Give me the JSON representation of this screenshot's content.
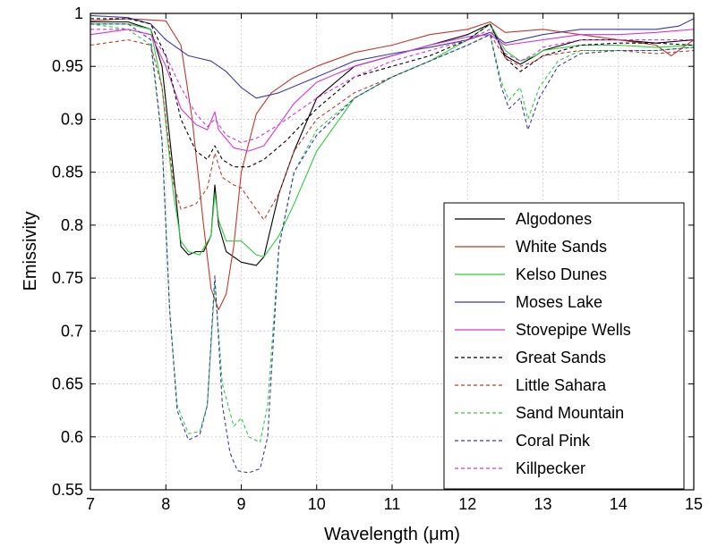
{
  "chart_data": {
    "type": "line",
    "xlabel": "Wavelength (μm)",
    "ylabel": "Emissivity",
    "xlim": [
      7,
      15
    ],
    "ylim": [
      0.55,
      1
    ],
    "grid": true,
    "legend_position": "bottom-right",
    "x_ticks": [
      "7",
      "8",
      "9",
      "10",
      "11",
      "12",
      "13",
      "14",
      "15"
    ],
    "y_ticks": [
      "0.55",
      "0.6",
      "0.65",
      "0.7",
      "0.75",
      "0.8",
      "0.85",
      "0.9",
      "0.95",
      "1"
    ],
    "series": [
      {
        "name": "Algodones",
        "color": "#000000",
        "style": "solid",
        "points": [
          [
            7,
            0.992
          ],
          [
            7.5,
            0.992
          ],
          [
            7.8,
            0.985
          ],
          [
            7.95,
            0.95
          ],
          [
            8.1,
            0.85
          ],
          [
            8.2,
            0.78
          ],
          [
            8.3,
            0.772
          ],
          [
            8.4,
            0.775
          ],
          [
            8.5,
            0.775
          ],
          [
            8.6,
            0.79
          ],
          [
            8.65,
            0.838
          ],
          [
            8.7,
            0.8
          ],
          [
            8.8,
            0.775
          ],
          [
            9,
            0.765
          ],
          [
            9.2,
            0.762
          ],
          [
            9.3,
            0.77
          ],
          [
            9.4,
            0.8
          ],
          [
            9.5,
            0.83
          ],
          [
            9.7,
            0.87
          ],
          [
            10,
            0.92
          ],
          [
            10.5,
            0.95
          ],
          [
            11,
            0.96
          ],
          [
            11.5,
            0.97
          ],
          [
            12,
            0.98
          ],
          [
            12.3,
            0.99
          ],
          [
            12.5,
            0.96
          ],
          [
            12.7,
            0.952
          ],
          [
            12.9,
            0.96
          ],
          [
            13,
            0.965
          ],
          [
            13.5,
            0.975
          ],
          [
            14,
            0.975
          ],
          [
            14.5,
            0.972
          ],
          [
            15,
            0.975
          ]
        ]
      },
      {
        "name": "White Sands",
        "color": "#c0392b",
        "style": "solid",
        "points": [
          [
            7,
            0.993
          ],
          [
            7.5,
            0.995
          ],
          [
            8,
            0.993
          ],
          [
            8.2,
            0.97
          ],
          [
            8.35,
            0.9
          ],
          [
            8.5,
            0.8
          ],
          [
            8.6,
            0.74
          ],
          [
            8.7,
            0.72
          ],
          [
            8.8,
            0.735
          ],
          [
            8.9,
            0.78
          ],
          [
            9,
            0.85
          ],
          [
            9.2,
            0.905
          ],
          [
            9.4,
            0.925
          ],
          [
            9.7,
            0.94
          ],
          [
            10,
            0.95
          ],
          [
            10.5,
            0.963
          ],
          [
            11,
            0.97
          ],
          [
            11.5,
            0.98
          ],
          [
            12,
            0.985
          ],
          [
            12.3,
            0.992
          ],
          [
            12.5,
            0.982
          ],
          [
            13,
            0.985
          ],
          [
            13.5,
            0.98
          ],
          [
            14,
            0.975
          ],
          [
            14.5,
            0.97
          ],
          [
            14.7,
            0.96
          ],
          [
            15,
            0.975
          ]
        ]
      },
      {
        "name": "Kelso Dunes",
        "color": "#2ecc40",
        "style": "solid",
        "points": [
          [
            7,
            0.99
          ],
          [
            7.5,
            0.99
          ],
          [
            7.8,
            0.985
          ],
          [
            7.95,
            0.93
          ],
          [
            8.1,
            0.83
          ],
          [
            8.2,
            0.785
          ],
          [
            8.3,
            0.775
          ],
          [
            8.45,
            0.772
          ],
          [
            8.6,
            0.79
          ],
          [
            8.65,
            0.83
          ],
          [
            8.7,
            0.805
          ],
          [
            8.8,
            0.785
          ],
          [
            9,
            0.785
          ],
          [
            9.2,
            0.772
          ],
          [
            9.3,
            0.77
          ],
          [
            9.5,
            0.79
          ],
          [
            9.7,
            0.82
          ],
          [
            10,
            0.87
          ],
          [
            10.5,
            0.92
          ],
          [
            11,
            0.94
          ],
          [
            11.5,
            0.955
          ],
          [
            12,
            0.975
          ],
          [
            12.3,
            0.99
          ],
          [
            12.5,
            0.965
          ],
          [
            12.7,
            0.955
          ],
          [
            12.9,
            0.96
          ],
          [
            13,
            0.965
          ],
          [
            13.5,
            0.97
          ],
          [
            14,
            0.97
          ],
          [
            14.5,
            0.968
          ],
          [
            15,
            0.97
          ]
        ]
      },
      {
        "name": "Moses Lake",
        "color": "#3a3aa6",
        "style": "solid",
        "points": [
          [
            7,
            0.998
          ],
          [
            7.5,
            0.996
          ],
          [
            7.8,
            0.99
          ],
          [
            8,
            0.975
          ],
          [
            8.3,
            0.96
          ],
          [
            8.6,
            0.955
          ],
          [
            8.8,
            0.945
          ],
          [
            9,
            0.93
          ],
          [
            9.2,
            0.92
          ],
          [
            9.5,
            0.925
          ],
          [
            10,
            0.94
          ],
          [
            10.5,
            0.955
          ],
          [
            11,
            0.962
          ],
          [
            11.5,
            0.968
          ],
          [
            12,
            0.975
          ],
          [
            12.3,
            0.982
          ],
          [
            12.5,
            0.972
          ],
          [
            13,
            0.98
          ],
          [
            13.5,
            0.985
          ],
          [
            14,
            0.985
          ],
          [
            14.5,
            0.985
          ],
          [
            14.8,
            0.988
          ],
          [
            15,
            0.995
          ]
        ]
      },
      {
        "name": "Stovepipe Wells",
        "color": "#d633d6",
        "style": "solid",
        "points": [
          [
            7,
            0.98
          ],
          [
            7.5,
            0.985
          ],
          [
            7.8,
            0.98
          ],
          [
            8,
            0.95
          ],
          [
            8.2,
            0.91
          ],
          [
            8.4,
            0.895
          ],
          [
            8.55,
            0.89
          ],
          [
            8.65,
            0.907
          ],
          [
            8.7,
            0.89
          ],
          [
            8.9,
            0.873
          ],
          [
            9.1,
            0.87
          ],
          [
            9.3,
            0.875
          ],
          [
            9.5,
            0.895
          ],
          [
            9.7,
            0.915
          ],
          [
            10,
            0.935
          ],
          [
            10.5,
            0.95
          ],
          [
            11,
            0.96
          ],
          [
            11.5,
            0.97
          ],
          [
            12,
            0.978
          ],
          [
            12.3,
            0.98
          ],
          [
            12.5,
            0.97
          ],
          [
            13,
            0.975
          ],
          [
            13.5,
            0.98
          ],
          [
            14,
            0.98
          ],
          [
            14.5,
            0.982
          ],
          [
            15,
            0.985
          ]
        ]
      },
      {
        "name": "Great Sands",
        "color": "#000000",
        "style": "dashed",
        "points": [
          [
            7,
            0.995
          ],
          [
            7.5,
            0.995
          ],
          [
            7.8,
            0.99
          ],
          [
            8,
            0.96
          ],
          [
            8.2,
            0.9
          ],
          [
            8.4,
            0.87
          ],
          [
            8.55,
            0.862
          ],
          [
            8.65,
            0.875
          ],
          [
            8.75,
            0.862
          ],
          [
            8.9,
            0.855
          ],
          [
            9.1,
            0.855
          ],
          [
            9.3,
            0.862
          ],
          [
            9.6,
            0.88
          ],
          [
            10,
            0.91
          ],
          [
            10.5,
            0.94
          ],
          [
            11,
            0.95
          ],
          [
            11.5,
            0.96
          ],
          [
            12,
            0.975
          ],
          [
            12.3,
            0.99
          ],
          [
            12.5,
            0.958
          ],
          [
            12.7,
            0.945
          ],
          [
            12.9,
            0.955
          ],
          [
            13,
            0.96
          ],
          [
            13.5,
            0.97
          ],
          [
            14,
            0.972
          ],
          [
            14.5,
            0.972
          ],
          [
            15,
            0.97
          ]
        ]
      },
      {
        "name": "Little Sahara",
        "color": "#c0392b",
        "style": "dashed",
        "points": [
          [
            7,
            0.97
          ],
          [
            7.5,
            0.975
          ],
          [
            7.8,
            0.97
          ],
          [
            7.95,
            0.93
          ],
          [
            8.1,
            0.84
          ],
          [
            8.2,
            0.815
          ],
          [
            8.4,
            0.82
          ],
          [
            8.55,
            0.835
          ],
          [
            8.65,
            0.868
          ],
          [
            8.75,
            0.845
          ],
          [
            8.9,
            0.838
          ],
          [
            9,
            0.835
          ],
          [
            9.2,
            0.815
          ],
          [
            9.3,
            0.805
          ],
          [
            9.5,
            0.83
          ],
          [
            9.7,
            0.87
          ],
          [
            10,
            0.9
          ],
          [
            10.5,
            0.925
          ],
          [
            11,
            0.94
          ],
          [
            11.5,
            0.955
          ],
          [
            12,
            0.97
          ],
          [
            12.3,
            0.98
          ],
          [
            12.5,
            0.958
          ],
          [
            12.7,
            0.95
          ],
          [
            12.9,
            0.955
          ],
          [
            13,
            0.96
          ],
          [
            13.5,
            0.965
          ],
          [
            14,
            0.965
          ],
          [
            14.5,
            0.962
          ],
          [
            15,
            0.965
          ]
        ]
      },
      {
        "name": "Sand Mountain",
        "color": "#2ecc40",
        "style": "dashed",
        "points": [
          [
            7,
            0.99
          ],
          [
            7.5,
            0.985
          ],
          [
            7.8,
            0.97
          ],
          [
            7.95,
            0.88
          ],
          [
            8.05,
            0.72
          ],
          [
            8.15,
            0.63
          ],
          [
            8.3,
            0.603
          ],
          [
            8.45,
            0.605
          ],
          [
            8.55,
            0.63
          ],
          [
            8.65,
            0.745
          ],
          [
            8.75,
            0.65
          ],
          [
            8.9,
            0.61
          ],
          [
            9,
            0.618
          ],
          [
            9.1,
            0.6
          ],
          [
            9.25,
            0.595
          ],
          [
            9.35,
            0.63
          ],
          [
            9.5,
            0.78
          ],
          [
            9.7,
            0.85
          ],
          [
            10,
            0.89
          ],
          [
            10.5,
            0.92
          ],
          [
            11,
            0.94
          ],
          [
            11.5,
            0.955
          ],
          [
            12,
            0.97
          ],
          [
            12.3,
            0.98
          ],
          [
            12.45,
            0.935
          ],
          [
            12.55,
            0.918
          ],
          [
            12.7,
            0.93
          ],
          [
            12.8,
            0.9
          ],
          [
            12.95,
            0.93
          ],
          [
            13.2,
            0.955
          ],
          [
            13.5,
            0.965
          ],
          [
            14,
            0.965
          ],
          [
            14.5,
            0.965
          ],
          [
            15,
            0.968
          ]
        ]
      },
      {
        "name": "Coral Pink",
        "color": "#3a3aa6",
        "style": "dashed",
        "points": [
          [
            7,
            0.99
          ],
          [
            7.5,
            0.99
          ],
          [
            7.8,
            0.975
          ],
          [
            7.95,
            0.88
          ],
          [
            8.05,
            0.72
          ],
          [
            8.15,
            0.625
          ],
          [
            8.3,
            0.597
          ],
          [
            8.45,
            0.602
          ],
          [
            8.55,
            0.63
          ],
          [
            8.65,
            0.752
          ],
          [
            8.75,
            0.63
          ],
          [
            8.85,
            0.585
          ],
          [
            8.95,
            0.568
          ],
          [
            9.1,
            0.566
          ],
          [
            9.25,
            0.57
          ],
          [
            9.35,
            0.6
          ],
          [
            9.5,
            0.78
          ],
          [
            9.7,
            0.85
          ],
          [
            10,
            0.885
          ],
          [
            10.5,
            0.92
          ],
          [
            11,
            0.94
          ],
          [
            11.5,
            0.955
          ],
          [
            12,
            0.97
          ],
          [
            12.3,
            0.98
          ],
          [
            12.45,
            0.93
          ],
          [
            12.55,
            0.91
          ],
          [
            12.7,
            0.92
          ],
          [
            12.8,
            0.89
          ],
          [
            12.95,
            0.92
          ],
          [
            13.2,
            0.95
          ],
          [
            13.5,
            0.962
          ],
          [
            14,
            0.965
          ],
          [
            14.5,
            0.965
          ],
          [
            15,
            0.968
          ]
        ]
      },
      {
        "name": "Killpecker",
        "color": "#d633d6",
        "style": "dashed",
        "points": [
          [
            7,
            0.985
          ],
          [
            7.5,
            0.985
          ],
          [
            7.8,
            0.98
          ],
          [
            8,
            0.96
          ],
          [
            8.2,
            0.93
          ],
          [
            8.4,
            0.905
          ],
          [
            8.55,
            0.893
          ],
          [
            8.65,
            0.9
          ],
          [
            8.8,
            0.885
          ],
          [
            9,
            0.878
          ],
          [
            9.2,
            0.882
          ],
          [
            9.5,
            0.895
          ],
          [
            10,
            0.92
          ],
          [
            10.5,
            0.94
          ],
          [
            11,
            0.955
          ],
          [
            11.5,
            0.965
          ],
          [
            12,
            0.975
          ],
          [
            12.3,
            0.985
          ],
          [
            12.5,
            0.962
          ],
          [
            12.7,
            0.955
          ],
          [
            12.9,
            0.962
          ],
          [
            13,
            0.968
          ],
          [
            13.5,
            0.975
          ],
          [
            14,
            0.975
          ],
          [
            14.5,
            0.975
          ],
          [
            15,
            0.975
          ]
        ]
      }
    ]
  }
}
